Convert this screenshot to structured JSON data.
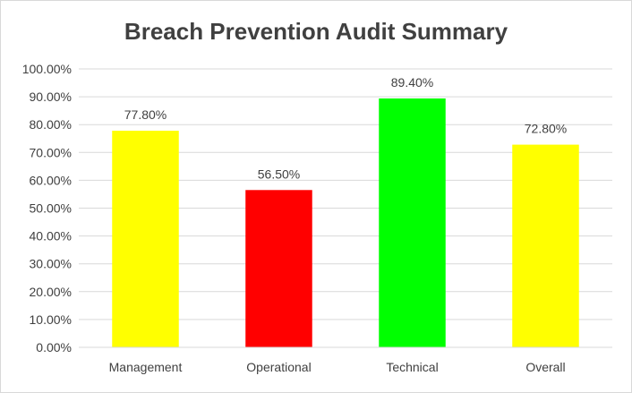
{
  "chart_data": {
    "type": "bar",
    "title": "Breach Prevention Audit Summary",
    "categories": [
      "Management",
      "Operational",
      "Technical",
      "Overall"
    ],
    "values": [
      77.8,
      56.5,
      89.4,
      72.8
    ],
    "value_labels": [
      "77.80%",
      "56.50%",
      "89.40%",
      "72.80%"
    ],
    "bar_colors": [
      "#ffff00",
      "#ff0000",
      "#00ff00",
      "#ffff00"
    ],
    "ylim": [
      0,
      100
    ],
    "yticks": [
      0,
      10,
      20,
      30,
      40,
      50,
      60,
      70,
      80,
      90,
      100
    ],
    "ytick_labels": [
      "0.00%",
      "10.00%",
      "20.00%",
      "30.00%",
      "40.00%",
      "50.00%",
      "60.00%",
      "70.00%",
      "80.00%",
      "90.00%",
      "100.00%"
    ],
    "grid": true,
    "gridline_color": "#d9d9d9",
    "legend": "none",
    "xlabel": "",
    "ylabel": ""
  }
}
